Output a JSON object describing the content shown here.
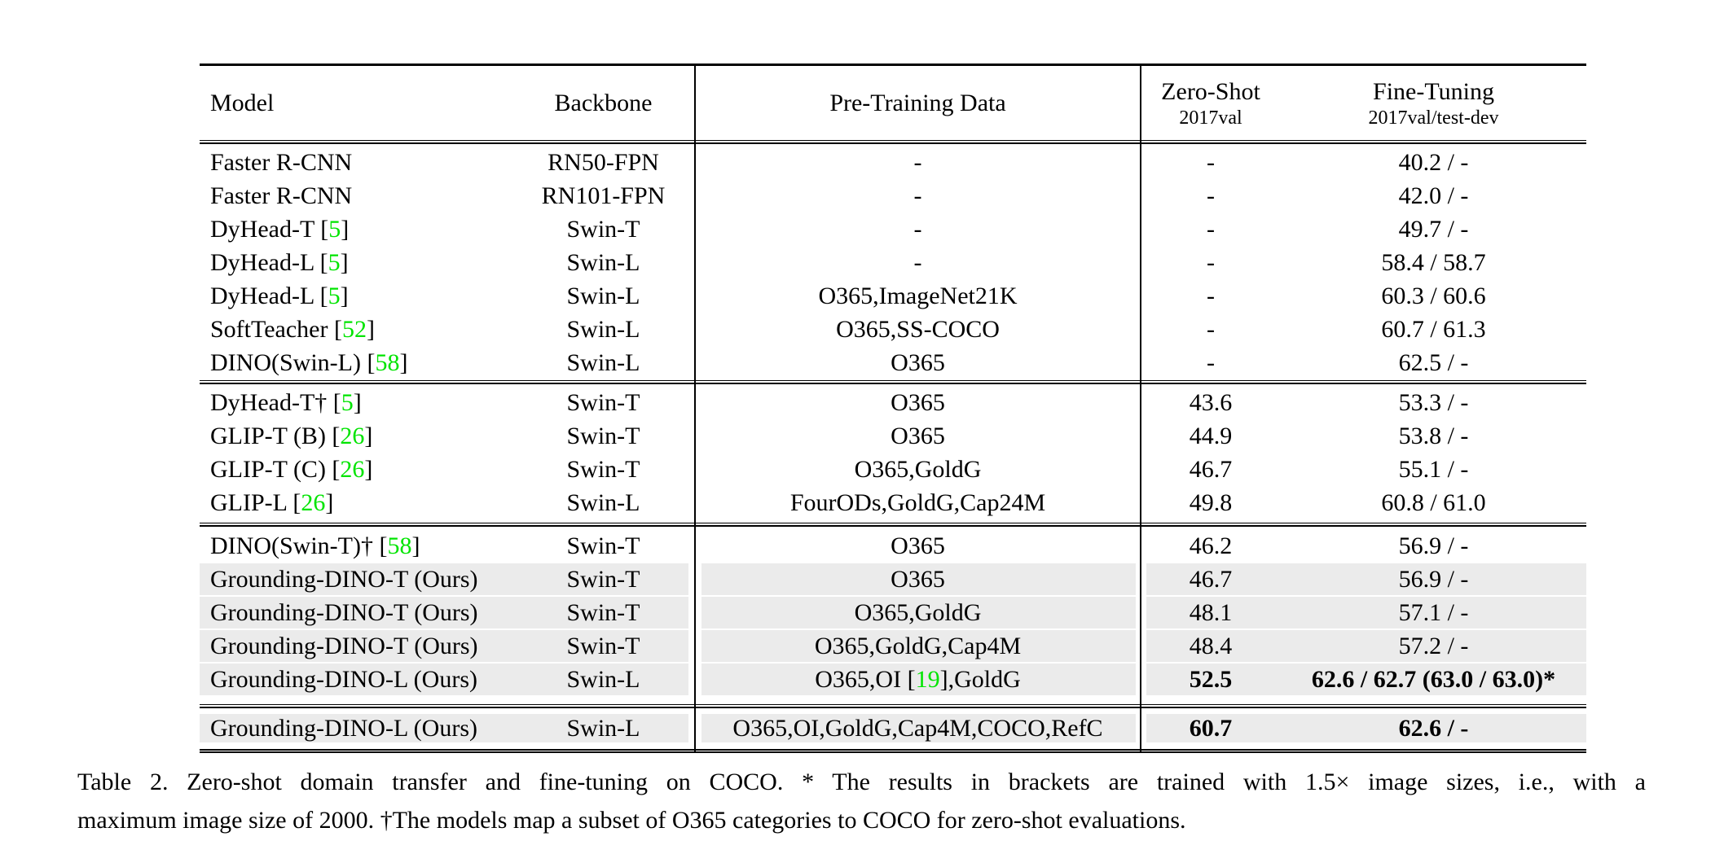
{
  "colors": {
    "row_highlight": "#ebebeb",
    "citation_green": "#00e400",
    "rule_black": "#000000"
  },
  "table": {
    "headers": {
      "model": "Model",
      "backbone": "Backbone",
      "pretrain": "Pre-Training Data",
      "zeroshot_line1": "Zero-Shot",
      "zeroshot_line2": "2017val",
      "finetune_line1": "Fine-Tuning",
      "finetune_line2": "2017val/test-dev"
    },
    "sections": [
      {
        "rows": [
          {
            "model": "Faster R-CNN",
            "backbone": "RN50-FPN",
            "pretrain": "-",
            "zeroshot": "-",
            "finetune": "40.2 / -",
            "highlight": false,
            "bold_results": false
          },
          {
            "model": "Faster R-CNN",
            "backbone": "RN101-FPN",
            "pretrain": "-",
            "zeroshot": "-",
            "finetune": "42.0 / -",
            "highlight": false,
            "bold_results": false
          },
          {
            "model": "DyHead-T [[5]]",
            "backbone": "Swin-T",
            "pretrain": "-",
            "zeroshot": "-",
            "finetune": "49.7 / -",
            "highlight": false,
            "bold_results": false
          },
          {
            "model": "DyHead-L [[5]]",
            "backbone": "Swin-L",
            "pretrain": "-",
            "zeroshot": "-",
            "finetune": "58.4 / 58.7",
            "highlight": false,
            "bold_results": false
          },
          {
            "model": "DyHead-L [[5]]",
            "backbone": "Swin-L",
            "pretrain": "O365,ImageNet21K",
            "zeroshot": "-",
            "finetune": "60.3 / 60.6",
            "highlight": false,
            "bold_results": false
          },
          {
            "model": "SoftTeacher [[52]]",
            "backbone": "Swin-L",
            "pretrain": "O365,SS-COCO",
            "zeroshot": "-",
            "finetune": "60.7 / 61.3",
            "highlight": false,
            "bold_results": false
          },
          {
            "model": "DINO(Swin-L) [[58]]",
            "backbone": "Swin-L",
            "pretrain": "O365",
            "zeroshot": "-",
            "finetune": "62.5 / -",
            "highlight": false,
            "bold_results": false
          }
        ]
      },
      {
        "rows": [
          {
            "model": "DyHead-T† [[5]]",
            "backbone": "Swin-T",
            "pretrain": "O365",
            "zeroshot": "43.6",
            "finetune": "53.3 / -",
            "highlight": false,
            "bold_results": false
          },
          {
            "model": "GLIP-T (B) [[26]]",
            "backbone": "Swin-T",
            "pretrain": "O365",
            "zeroshot": "44.9",
            "finetune": "53.8 / -",
            "highlight": false,
            "bold_results": false
          },
          {
            "model": "GLIP-T (C) [[26]]",
            "backbone": "Swin-T",
            "pretrain": "O365,GoldG",
            "zeroshot": "46.7",
            "finetune": "55.1 / -",
            "highlight": false,
            "bold_results": false
          },
          {
            "model": "GLIP-L [[26]]",
            "backbone": "Swin-L",
            "pretrain": "FourODs,GoldG,Cap24M",
            "zeroshot": "49.8",
            "finetune": "60.8 / 61.0",
            "highlight": false,
            "bold_results": false
          }
        ]
      },
      {
        "rows": [
          {
            "model": "DINO(Swin-T)† [[58]]",
            "backbone": "Swin-T",
            "pretrain": "O365",
            "zeroshot": "46.2",
            "finetune": "56.9 / -",
            "highlight": false,
            "bold_results": false
          },
          {
            "model": "Grounding-DINO-T (Ours)",
            "backbone": "Swin-T",
            "pretrain": "O365",
            "zeroshot": "46.7",
            "finetune": "56.9 / -",
            "highlight": true,
            "bold_results": false
          },
          {
            "model": "Grounding-DINO-T (Ours)",
            "backbone": "Swin-T",
            "pretrain": "O365,GoldG",
            "zeroshot": "48.1",
            "finetune": "57.1 / -",
            "highlight": true,
            "bold_results": false
          },
          {
            "model": "Grounding-DINO-T (Ours)",
            "backbone": "Swin-T",
            "pretrain": "O365,GoldG,Cap4M",
            "zeroshot": "48.4",
            "finetune": "57.2 / -",
            "highlight": true,
            "bold_results": false
          },
          {
            "model": "Grounding-DINO-L (Ours)",
            "backbone": "Swin-L",
            "pretrain": "O365,OI [[19]],GoldG",
            "zeroshot": "52.5",
            "finetune": "62.6 / 62.7 (63.0 / 63.0)*",
            "highlight": true,
            "bold_results": true
          }
        ]
      },
      {
        "rows": [
          {
            "model": "Grounding-DINO-L (Ours)",
            "backbone": "Swin-L",
            "pretrain": "O365,OI,GoldG,Cap4M,COCO,RefC",
            "zeroshot": "60.7",
            "finetune": "62.6 / -",
            "highlight": true,
            "bold_results": true
          }
        ]
      }
    ]
  },
  "caption": {
    "line1": "Table 2. Zero-shot domain transfer and fine-tuning on COCO. * The results in brackets are trained with 1.5× image sizes, i.e., with a",
    "line2": "maximum image size of 2000. †The models map a subset of O365 categories to COCO for zero-shot evaluations."
  }
}
